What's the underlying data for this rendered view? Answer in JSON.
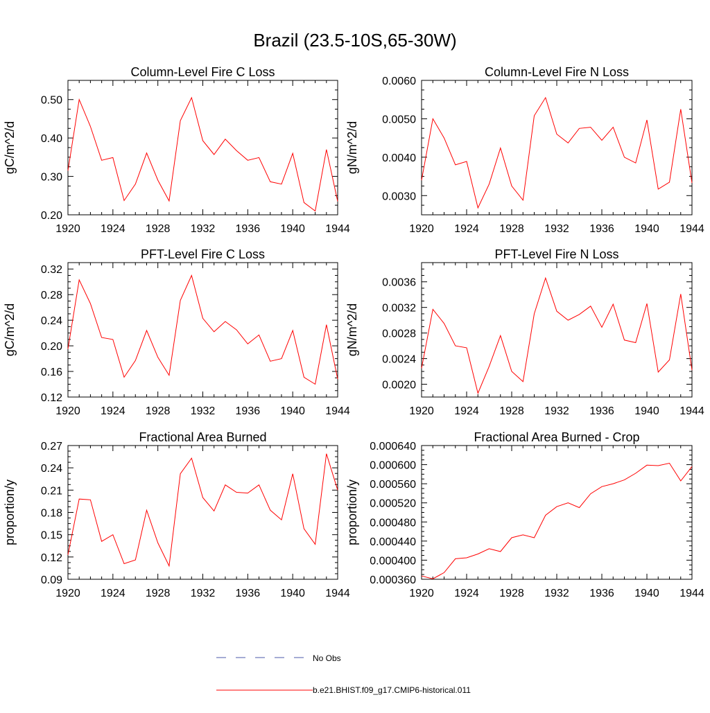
{
  "page_title": "Brazil (23.5-10S,65-30W)",
  "series_colors": {
    "model": "#ff0000",
    "obs": "#4b5aa8"
  },
  "legend": {
    "obs_label": "No Obs",
    "model_label": "b.e21.BHIST.f09_g17.CMIP6-historical.011"
  },
  "chart_data": [
    {
      "type": "line",
      "title": "Column-Level Fire C Loss",
      "ylabel": "gC/m^2/d",
      "xlim": [
        1920,
        1944
      ],
      "ylim": [
        0.2,
        0.55
      ],
      "xticks": [
        1920,
        1924,
        1928,
        1932,
        1936,
        1940,
        1944
      ],
      "yticks": [
        "0.20",
        "0.30",
        "0.40",
        "0.50"
      ],
      "x": [
        1920,
        1921,
        1922,
        1923,
        1924,
        1925,
        1926,
        1927,
        1928,
        1929,
        1930,
        1931,
        1932,
        1933,
        1934,
        1935,
        1936,
        1937,
        1938,
        1939,
        1940,
        1941,
        1942,
        1943,
        1944
      ],
      "values": [
        0.315,
        0.5,
        0.43,
        0.342,
        0.349,
        0.237,
        0.28,
        0.361,
        0.29,
        0.236,
        0.445,
        0.505,
        0.393,
        0.357,
        0.397,
        0.367,
        0.342,
        0.349,
        0.286,
        0.28,
        0.36,
        0.232,
        0.21,
        0.37,
        0.235
      ]
    },
    {
      "type": "line",
      "title": "Column-Level Fire N Loss",
      "ylabel": "gN/m^2/d",
      "xlim": [
        1920,
        1944
      ],
      "ylim": [
        0.0025,
        0.006
      ],
      "xticks": [
        1920,
        1924,
        1928,
        1932,
        1936,
        1940,
        1944
      ],
      "yticks": [
        "0.0030",
        "0.0040",
        "0.0050",
        "0.0060"
      ],
      "x": [
        1920,
        1921,
        1922,
        1923,
        1924,
        1925,
        1926,
        1927,
        1928,
        1929,
        1930,
        1931,
        1932,
        1933,
        1934,
        1935,
        1936,
        1937,
        1938,
        1939,
        1940,
        1941,
        1942,
        1943,
        1944
      ],
      "values": [
        0.0034,
        0.005,
        0.0045,
        0.0038,
        0.00389,
        0.00268,
        0.0033,
        0.00424,
        0.00325,
        0.00288,
        0.00508,
        0.00555,
        0.0046,
        0.00437,
        0.00475,
        0.00478,
        0.00444,
        0.00478,
        0.004,
        0.00385,
        0.00497,
        0.00317,
        0.00335,
        0.00525,
        0.00333
      ]
    },
    {
      "type": "line",
      "title": "PFT-Level Fire C Loss",
      "ylabel": "gC/m^2/d",
      "xlim": [
        1920,
        1944
      ],
      "ylim": [
        0.12,
        0.33
      ],
      "xticks": [
        1920,
        1924,
        1928,
        1932,
        1936,
        1940,
        1944
      ],
      "yticks": [
        "0.12",
        "0.16",
        "0.20",
        "0.24",
        "0.28",
        "0.32"
      ],
      "x": [
        1920,
        1921,
        1922,
        1923,
        1924,
        1925,
        1926,
        1927,
        1928,
        1929,
        1930,
        1931,
        1932,
        1933,
        1934,
        1935,
        1936,
        1937,
        1938,
        1939,
        1940,
        1941,
        1942,
        1943,
        1944
      ],
      "values": [
        0.195,
        0.303,
        0.266,
        0.213,
        0.21,
        0.151,
        0.177,
        0.224,
        0.182,
        0.154,
        0.271,
        0.31,
        0.243,
        0.222,
        0.238,
        0.225,
        0.203,
        0.217,
        0.176,
        0.18,
        0.224,
        0.151,
        0.14,
        0.233,
        0.148
      ]
    },
    {
      "type": "line",
      "title": "PFT-Level Fire N Loss",
      "ylabel": "gN/m^2/d",
      "xlim": [
        1920,
        1944
      ],
      "ylim": [
        0.0018,
        0.0039
      ],
      "xticks": [
        1920,
        1924,
        1928,
        1932,
        1936,
        1940,
        1944
      ],
      "yticks": [
        "0.0020",
        "0.0024",
        "0.0028",
        "0.0032",
        "0.0036"
      ],
      "x": [
        1920,
        1921,
        1922,
        1923,
        1924,
        1925,
        1926,
        1927,
        1928,
        1929,
        1930,
        1931,
        1932,
        1933,
        1934,
        1935,
        1936,
        1937,
        1938,
        1939,
        1940,
        1941,
        1942,
        1943,
        1944
      ],
      "values": [
        0.00225,
        0.00317,
        0.00295,
        0.0026,
        0.00257,
        0.00186,
        0.00228,
        0.00276,
        0.0022,
        0.00204,
        0.0031,
        0.00366,
        0.00314,
        0.003,
        0.00309,
        0.00322,
        0.00289,
        0.00325,
        0.00269,
        0.00265,
        0.00326,
        0.00219,
        0.00238,
        0.00341,
        0.00222
      ]
    },
    {
      "type": "line",
      "title": "Fractional Area Burned",
      "ylabel": "proportion/y",
      "xlim": [
        1920,
        1944
      ],
      "ylim": [
        0.09,
        0.27
      ],
      "xticks": [
        1920,
        1924,
        1928,
        1932,
        1936,
        1940,
        1944
      ],
      "yticks": [
        "0.09",
        "0.12",
        "0.15",
        "0.18",
        "0.21",
        "0.24",
        "0.27"
      ],
      "x": [
        1920,
        1921,
        1922,
        1923,
        1924,
        1925,
        1926,
        1927,
        1928,
        1929,
        1930,
        1931,
        1932,
        1933,
        1934,
        1935,
        1936,
        1937,
        1938,
        1939,
        1940,
        1941,
        1942,
        1943,
        1944
      ],
      "values": [
        0.123,
        0.198,
        0.197,
        0.141,
        0.15,
        0.111,
        0.116,
        0.183,
        0.139,
        0.108,
        0.232,
        0.253,
        0.2,
        0.182,
        0.217,
        0.207,
        0.206,
        0.217,
        0.183,
        0.17,
        0.232,
        0.158,
        0.137,
        0.259,
        0.21
      ]
    },
    {
      "type": "line",
      "title": "Fractional Area Burned - Crop",
      "ylabel": "proportion/y",
      "xlim": [
        1920,
        1944
      ],
      "ylim": [
        0.00036,
        0.00064
      ],
      "xticks": [
        1920,
        1924,
        1928,
        1932,
        1936,
        1940,
        1944
      ],
      "yticks": [
        "0.000360",
        "0.000400",
        "0.000440",
        "0.000480",
        "0.000520",
        "0.000560",
        "0.000600",
        "0.000640"
      ],
      "x": [
        1920,
        1921,
        1922,
        1923,
        1924,
        1925,
        1926,
        1927,
        1928,
        1929,
        1930,
        1931,
        1932,
        1933,
        1934,
        1935,
        1936,
        1937,
        1938,
        1939,
        1940,
        1941,
        1942,
        1943,
        1944
      ],
      "values": [
        0.000367,
        0.000361,
        0.000374,
        0.000403,
        0.000405,
        0.000413,
        0.000424,
        0.000418,
        0.000447,
        0.000453,
        0.000447,
        0.000494,
        0.000512,
        0.00052,
        0.00051,
        0.000539,
        0.000554,
        0.00056,
        0.000568,
        0.000582,
        0.000599,
        0.000598,
        0.000603,
        0.000566,
        0.000596
      ]
    }
  ]
}
